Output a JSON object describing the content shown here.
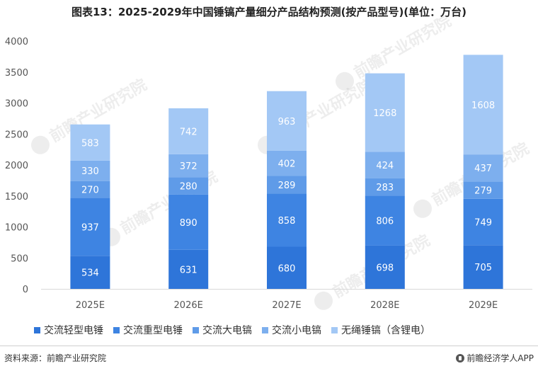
{
  "title": "图表13：2025-2029年中国锤镐产量细分产品结构预测(按产品型号)(单位：万台)",
  "source": "资料来源：前瞻产业研究院",
  "brand": "前瞻经济学人APP",
  "watermark": "前瞻产业研究院",
  "colors": {
    "axis_text": "#555555",
    "gridline": "#e0e0e0",
    "label_text": "#ffffff"
  },
  "chart_data": {
    "type": "bar",
    "stacked": true,
    "categories": [
      "2025E",
      "2026E",
      "2027E",
      "2028E",
      "2029E"
    ],
    "series": [
      {
        "name": "交流轻型电锤",
        "values": [
          534,
          631,
          680,
          698,
          705
        ],
        "color": "#2e75d9"
      },
      {
        "name": "交流重型电锤",
        "values": [
          937,
          890,
          858,
          806,
          749
        ],
        "color": "#3e84e2"
      },
      {
        "name": "交流大电镐",
        "values": [
          270,
          280,
          289,
          283,
          279
        ],
        "color": "#5f9be8"
      },
      {
        "name": "交流小电镐",
        "values": [
          330,
          372,
          402,
          424,
          437
        ],
        "color": "#7dafee"
      },
      {
        "name": "无绳锤镐（含锂电）",
        "values": [
          583,
          742,
          963,
          1268,
          1608
        ],
        "color": "#a3c8f5"
      }
    ],
    "ylim": [
      0,
      4000
    ],
    "yticks": [
      0,
      500,
      1000,
      1500,
      2000,
      2500,
      3000,
      3500,
      4000
    ],
    "xlabel": "",
    "ylabel": "",
    "grid": false,
    "legend": "bottom"
  }
}
